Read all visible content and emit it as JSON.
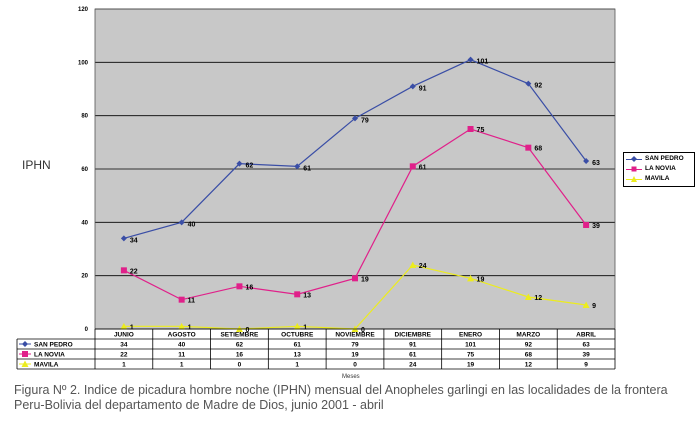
{
  "chart_data": {
    "type": "line",
    "ylabel": "IPHN",
    "xlabel": "Meses",
    "ylim": [
      0,
      120
    ],
    "yticks": [
      "0",
      "20",
      "40",
      "60",
      "80",
      "100",
      "120"
    ],
    "categories": [
      "JUNIO",
      "AGOSTO",
      "SETIEMBRE",
      "OCTUBRE",
      "NOVIEMBRE",
      "DICIEMBRE",
      "ENERO",
      "MARZO",
      "ABRIL"
    ],
    "grid": true,
    "legend_position": "right",
    "series": [
      {
        "name": "SAN PEDRO",
        "color": "#3a4ea6",
        "marker": "diamond",
        "values": [
          34,
          40,
          62,
          61,
          79,
          91,
          101,
          92,
          63
        ],
        "labels": [
          "34",
          "40",
          "62",
          "61",
          "79",
          "91",
          "101",
          "92",
          "63"
        ]
      },
      {
        "name": "LA NOVIA",
        "color": "#e0208a",
        "marker": "square",
        "values": [
          22,
          11,
          16,
          13,
          19,
          61,
          75,
          68,
          39
        ],
        "labels": [
          "22",
          "11",
          "16",
          "13",
          "19",
          "61",
          "75",
          "68",
          "39"
        ]
      },
      {
        "name": "MAVILA",
        "color": "#ecec1e",
        "marker": "triangle",
        "values": [
          1,
          1,
          0,
          1,
          0,
          24,
          19,
          12,
          9
        ],
        "labels": [
          "1",
          "1",
          "0",
          "1",
          "0",
          "24",
          "19",
          "12",
          "9"
        ]
      }
    ]
  },
  "caption": "Figura Nº 2. Indice de picadura hombre noche (IPHN) mensual del Anopheles garlingi en las localidades de la frontera Peru-Bolivia del departamento de Madre de Dios, junio 2001 - abril"
}
